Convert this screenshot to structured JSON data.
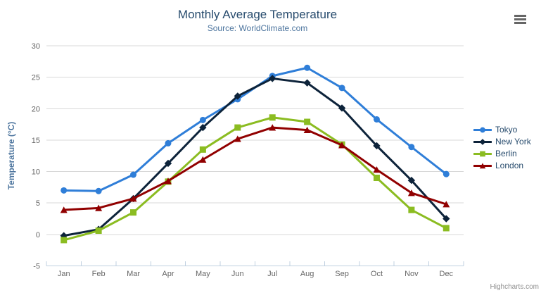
{
  "header": {
    "title": "Monthly Average Temperature",
    "subtitle": "Source: WorldClimate.com"
  },
  "credits": {
    "label": "Highcharts.com"
  },
  "icons": {
    "export_menu": "hamburger"
  },
  "colors": {
    "title": "#274b6d",
    "subtitle": "#4d759e",
    "axis_title": "#4d759e",
    "axis_label": "#666666",
    "grid": "#d8d8d8",
    "axis_line": "#c0d0e0",
    "legend_text": "#274b6d",
    "export_icon": "#666666"
  },
  "chart_data": {
    "type": "line",
    "title": "Monthly Average Temperature",
    "subtitle": "Source: WorldClimate.com",
    "categories": [
      "Jan",
      "Feb",
      "Mar",
      "Apr",
      "May",
      "Jun",
      "Jul",
      "Aug",
      "Sep",
      "Oct",
      "Nov",
      "Dec"
    ],
    "series": [
      {
        "name": "Tokyo",
        "color": "#2f7ed8",
        "marker": "circle",
        "values": [
          7.0,
          6.9,
          9.5,
          14.5,
          18.2,
          21.5,
          25.2,
          26.5,
          23.3,
          18.3,
          13.9,
          9.6
        ]
      },
      {
        "name": "New York",
        "color": "#0d233a",
        "marker": "diamond",
        "values": [
          -0.2,
          0.8,
          5.7,
          11.3,
          17.0,
          22.0,
          24.8,
          24.1,
          20.1,
          14.1,
          8.6,
          2.5
        ]
      },
      {
        "name": "Berlin",
        "color": "#8bbc21",
        "marker": "square",
        "values": [
          -0.9,
          0.6,
          3.5,
          8.4,
          13.5,
          17.0,
          18.6,
          17.9,
          14.3,
          9.0,
          3.9,
          1.0
        ]
      },
      {
        "name": "London",
        "color": "#910000",
        "marker": "triangle",
        "values": [
          3.9,
          4.2,
          5.7,
          8.5,
          11.9,
          15.2,
          17.0,
          16.6,
          14.2,
          10.3,
          6.6,
          4.8
        ]
      }
    ],
    "xlabel": "",
    "ylabel": "Temperature (°C)",
    "ylim": [
      -5,
      30
    ],
    "ytick_step": 5,
    "yticks": [
      -5,
      0,
      5,
      10,
      15,
      20,
      25,
      30
    ],
    "grid": true,
    "legend_position": "right"
  }
}
